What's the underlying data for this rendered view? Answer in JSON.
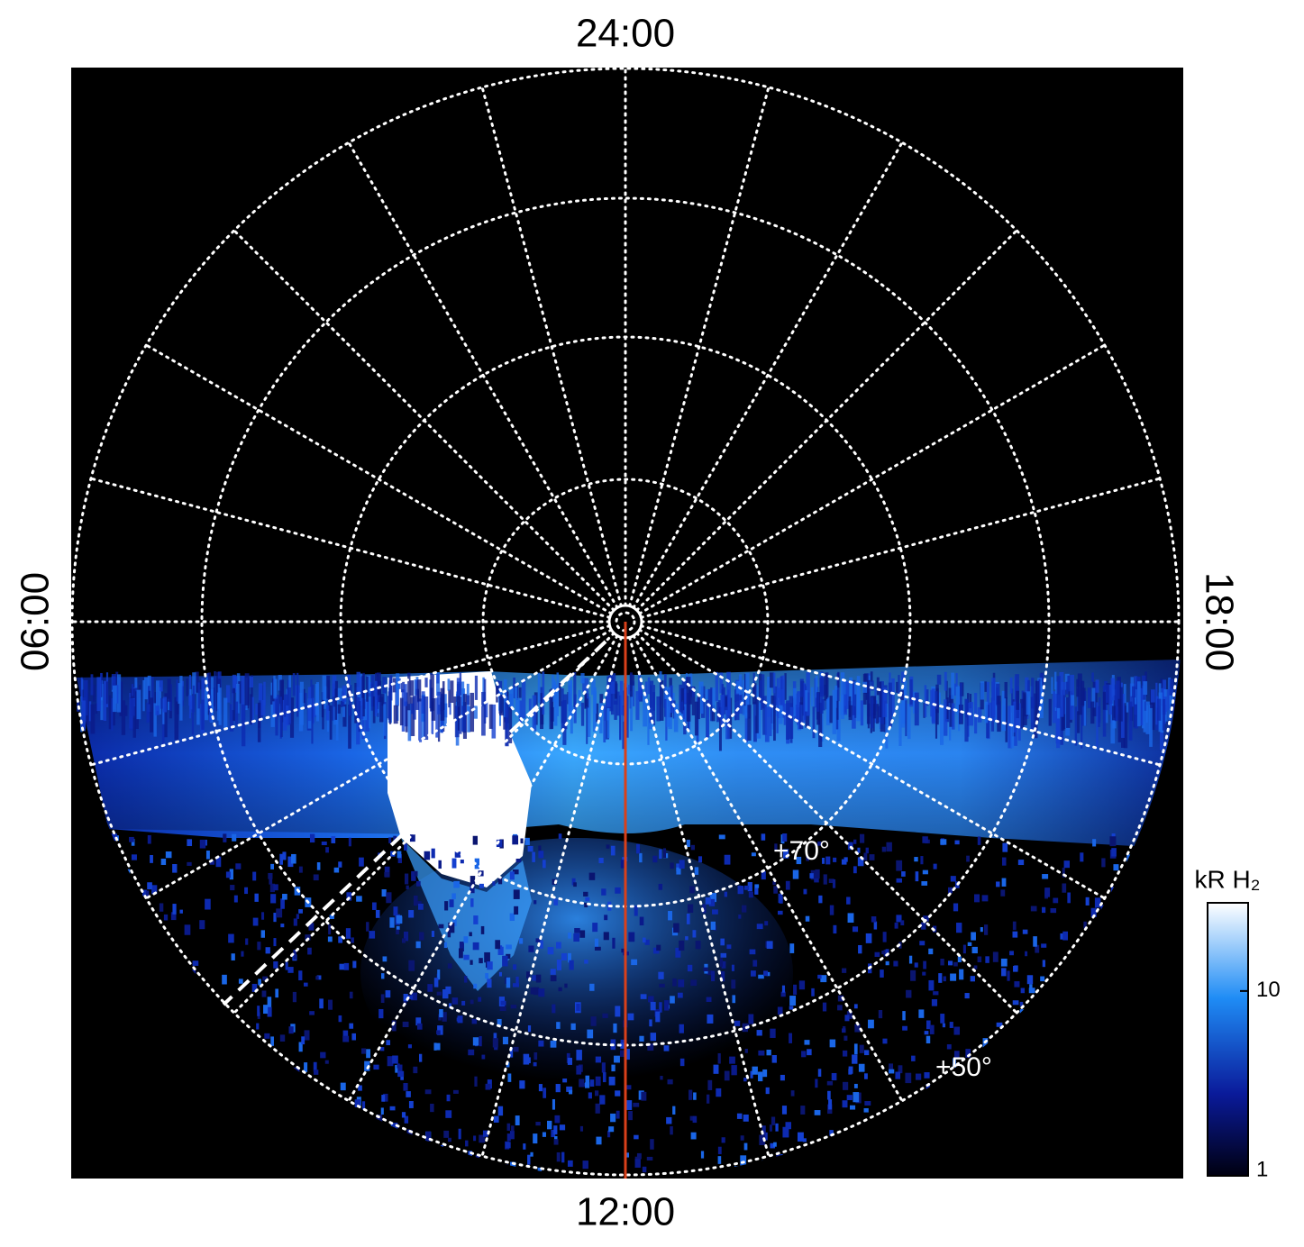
{
  "map": {
    "local_time_labels": {
      "top": "24:00",
      "left": "06:00",
      "bottom": "12:00",
      "right": "18:00"
    },
    "latitude_labels": [
      "+70°",
      "+50°"
    ],
    "colorbar": {
      "label": "kR H₂",
      "log_scale": true,
      "lim": [
        1,
        30
      ],
      "ticks": [
        1,
        10
      ]
    }
  }
}
